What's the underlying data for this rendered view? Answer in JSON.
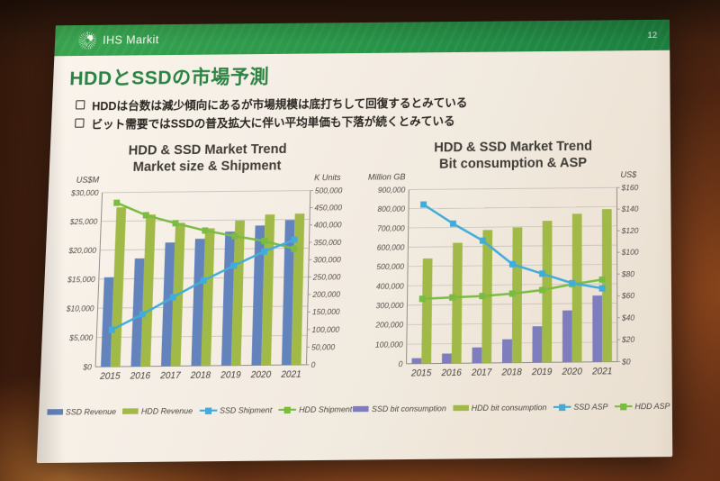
{
  "header": {
    "brand": "IHS Markit",
    "page_number": "12"
  },
  "slide": {
    "title": "HDDとSSDの市場予測",
    "bullets": [
      "HDDは台数は減少傾向にあるが市場規模は底打ちして回復するとみている",
      "ビット需要ではSSDの普及拡大に伴い平均単価も下落が続くとみている"
    ]
  },
  "colors": {
    "band_green_light": "#2da44e",
    "band_green_dark": "#0c7c3c",
    "title_green": "#1d8040",
    "ssd_revenue_blue": "#5a80c2",
    "hdd_green": "#9cb944",
    "ssd_line_blue": "#36ace2",
    "hdd_line_green": "#72bd3e",
    "ssd_bit_blue": "#767ac2",
    "grid_gray": "#bdbdbd"
  },
  "chart_data": [
    {
      "type": "bar",
      "subtype": "combo-bar-line",
      "title_lines": [
        "HDD & SSD Market Trend",
        "Market size & Shipment"
      ],
      "categories": [
        "2015",
        "2016",
        "2017",
        "2018",
        "2019",
        "2020",
        "2021"
      ],
      "left_axis": {
        "title": "US$M",
        "min": 0,
        "max": 30000,
        "step": 5000,
        "format": "usd_thousands"
      },
      "right_axis": {
        "title": "K Units",
        "min": 0,
        "max": 500000,
        "step": 50000,
        "format": "thousands"
      },
      "grid": true,
      "legend_position": "bottom",
      "bar_series": [
        {
          "name": "SSD Revenue",
          "axis": "left",
          "color": "#5a80c2",
          "values": [
            15300,
            18500,
            21200,
            21800,
            23000,
            24000,
            24900
          ]
        },
        {
          "name": "HDD Revenue",
          "axis": "left",
          "color": "#9cb944",
          "values": [
            27400,
            26100,
            24600,
            23600,
            24900,
            25900,
            26000
          ]
        }
      ],
      "line_series": [
        {
          "name": "SSD Shipment",
          "axis": "right",
          "color": "#36ace2",
          "values": [
            105000,
            148000,
            196000,
            243000,
            285000,
            325000,
            358000
          ]
        },
        {
          "name": "HDD Shipment",
          "axis": "right",
          "color": "#72bd3e",
          "values": [
            470000,
            433000,
            409000,
            387000,
            370000,
            355000,
            332000
          ]
        }
      ]
    },
    {
      "type": "bar",
      "subtype": "combo-bar-line",
      "title_lines": [
        "HDD & SSD Market Trend",
        "Bit consumption & ASP"
      ],
      "categories": [
        "2015",
        "2016",
        "2017",
        "2018",
        "2019",
        "2020",
        "2021"
      ],
      "left_axis": {
        "title": "Million GB",
        "min": 0,
        "max": 900000,
        "step": 100000,
        "format": "thousands"
      },
      "right_axis": {
        "title": "US$",
        "min": 0,
        "max": 160,
        "step": 20,
        "format": "usd_int"
      },
      "grid": true,
      "legend_position": "bottom",
      "bar_series": [
        {
          "name": "SSD bit consumption",
          "axis": "left",
          "color": "#767ac2",
          "values": [
            28000,
            50000,
            80000,
            120000,
            185000,
            265000,
            340000
          ]
        },
        {
          "name": "HDD bit consumption",
          "axis": "left",
          "color": "#9cb944",
          "values": [
            540000,
            620000,
            685000,
            697000,
            730000,
            765000,
            788000
          ]
        }
      ],
      "line_series": [
        {
          "name": "SSD ASP",
          "axis": "right",
          "color": "#36ace2",
          "values": [
            146,
            128,
            112,
            90,
            81,
            72,
            67
          ]
        },
        {
          "name": "HDD ASP",
          "axis": "right",
          "color": "#72bd3e",
          "values": [
            59,
            60,
            61,
            63,
            66,
            71,
            75
          ]
        }
      ]
    }
  ]
}
